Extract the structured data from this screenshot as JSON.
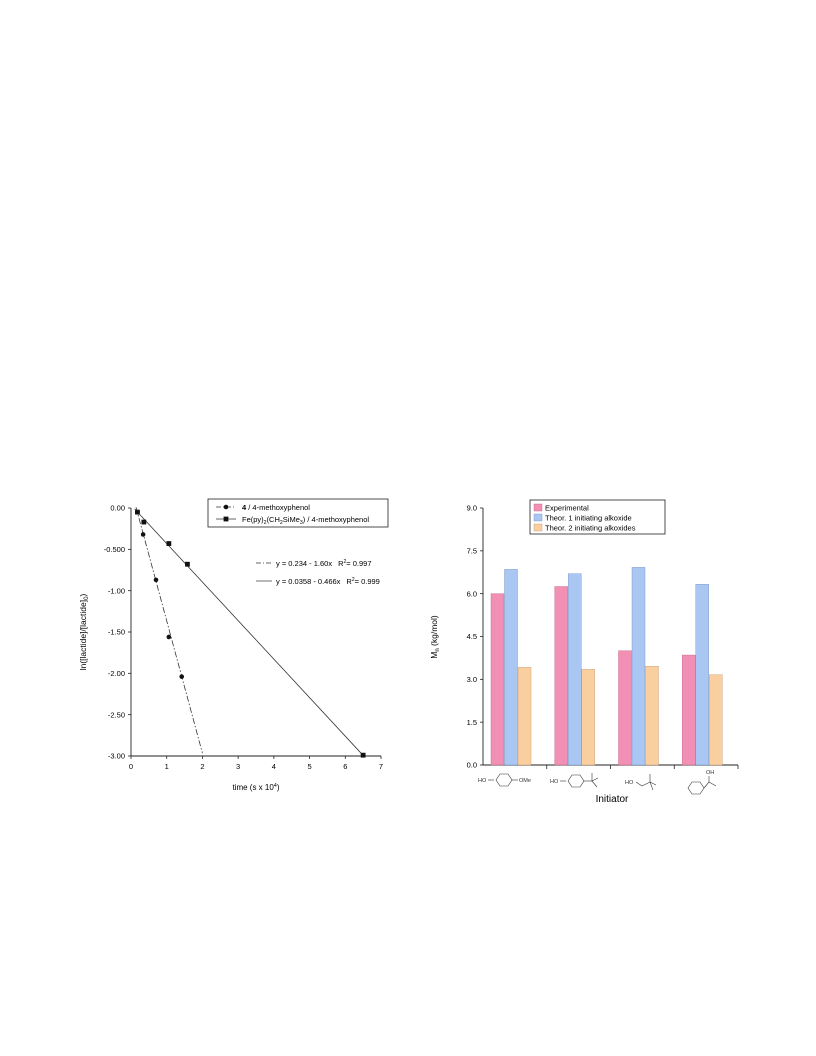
{
  "chart_data": [
    {
      "type": "scatter",
      "title": "",
      "xlabel": "time (s x 10⁴)",
      "ylabel": "ln([lactide]/[lactide]₀)",
      "xlim": [
        0,
        7
      ],
      "ylim": [
        -3.0,
        0.0
      ],
      "x_ticks": [
        "0",
        "1",
        "2",
        "3",
        "4",
        "5",
        "6",
        "7"
      ],
      "y_ticks": [
        "0.00",
        "-0.500",
        "-1.00",
        "-1.50",
        "-2.00",
        "-2.50",
        "-3.00"
      ],
      "grid": false,
      "legend_position": "top-right",
      "series": [
        {
          "name_parts": [
            "4",
            " / 4-methoxyphenol"
          ],
          "marker": "circle",
          "line_style": "dash-dot",
          "points": [
            {
              "x": 0.18,
              "y": -0.05
            },
            {
              "x": 0.34,
              "y": -0.32
            },
            {
              "x": 0.7,
              "y": -0.87
            },
            {
              "x": 1.06,
              "y": -1.56
            },
            {
              "x": 1.42,
              "y": -2.04
            }
          ],
          "fit": {
            "intercept": 0.234,
            "slope": -1.6,
            "x_range": [
              0.14,
              2.0
            ]
          },
          "equation": "y = 0.234 - 1.60x",
          "r2_label": "R",
          "r2_value": "= 0.997"
        },
        {
          "name_parts": [
            "Fe(py)",
            "2",
            "(CH",
            "2",
            "SiMe",
            "3",
            ")  / 4-methoxyphenol"
          ],
          "marker": "square",
          "line_style": "solid",
          "points": [
            {
              "x": 0.18,
              "y": -0.05
            },
            {
              "x": 0.36,
              "y": -0.17
            },
            {
              "x": 1.06,
              "y": -0.43
            },
            {
              "x": 1.58,
              "y": -0.68
            },
            {
              "x": 6.5,
              "y": -2.99
            }
          ],
          "fit": {
            "intercept": 0.0358,
            "slope": -0.466,
            "x_range": [
              0.1,
              6.5
            ]
          },
          "equation": "y = 0.0358 - 0.466x",
          "r2_label": "R",
          "r2_value": "= 0.999"
        }
      ]
    },
    {
      "type": "bar",
      "title": "",
      "xlabel": "Initiator",
      "ylabel_main": "M",
      "ylabel_sub": "n",
      "ylabel_rest": " (kg/mol)",
      "ylim": [
        0,
        9.0
      ],
      "y_ticks": [
        "0.0",
        "1.5",
        "3.0",
        "4.5",
        "6.0",
        "7.5",
        "9.0"
      ],
      "grid": false,
      "legend_position": "top-center",
      "series": [
        {
          "name": "Experimental",
          "color": "#f28fb4",
          "values": [
            6.0,
            6.25,
            4.0,
            3.85
          ]
        },
        {
          "name": "Theor. 1 initiating alkoxide",
          "color": "#aac6f2",
          "values": [
            6.85,
            6.7,
            6.92,
            6.33
          ]
        },
        {
          "name": "Theor. 2 initiating alkoxides",
          "color": "#f9cfa0",
          "values": [
            3.42,
            3.35,
            3.46,
            3.16
          ]
        }
      ],
      "category_labels": {
        "cat1_left": "HO",
        "cat1_right": "OMe",
        "cat2_left": "HO",
        "cat3_left": "HO",
        "cat4_top": "OH"
      }
    }
  ]
}
